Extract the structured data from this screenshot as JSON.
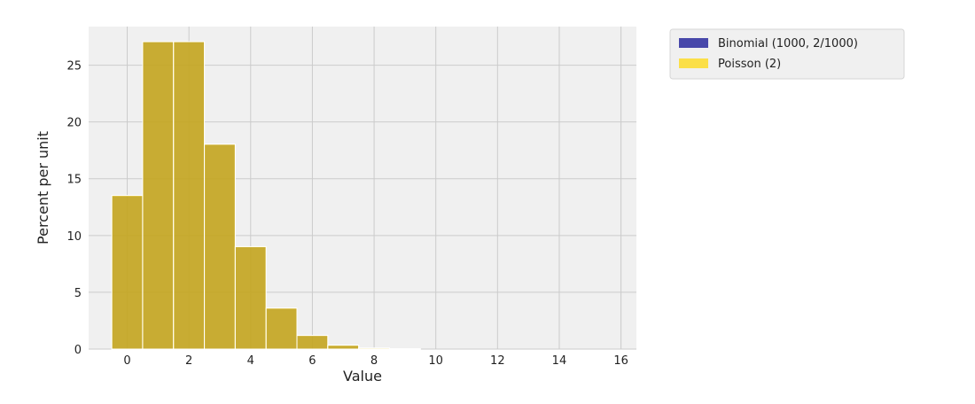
{
  "chart_data": {
    "type": "bar",
    "title": "",
    "xlabel": "Value",
    "ylabel": "Percent per unit",
    "xlim": [
      -1.25,
      16.5
    ],
    "ylim": [
      0,
      28.4
    ],
    "x_ticks": [
      0,
      2,
      4,
      6,
      8,
      10,
      12,
      14,
      16
    ],
    "y_ticks": [
      0,
      5,
      10,
      15,
      20,
      25
    ],
    "grid": true,
    "legend_position": "outside-right-top",
    "bins": [
      0,
      1,
      2,
      3,
      4,
      5,
      6,
      7,
      8,
      9,
      10,
      11,
      12,
      13,
      14,
      15
    ],
    "series": [
      {
        "name": "Binomial (1000, 2/1000)",
        "color": "#00008b",
        "values": [
          13.51,
          27.07,
          27.07,
          18.04,
          9.01,
          3.6,
          1.2,
          0.34,
          0.09,
          0.02,
          0.0,
          0.0,
          0.0,
          0.0,
          0.0,
          0.0
        ]
      },
      {
        "name": "Poisson (2)",
        "color": "#ffd700",
        "values": [
          13.53,
          27.07,
          27.07,
          18.04,
          9.02,
          3.61,
          1.2,
          0.34,
          0.09,
          0.02,
          0.0,
          0.0,
          0.0,
          0.0,
          0.0,
          0.0
        ]
      }
    ]
  }
}
